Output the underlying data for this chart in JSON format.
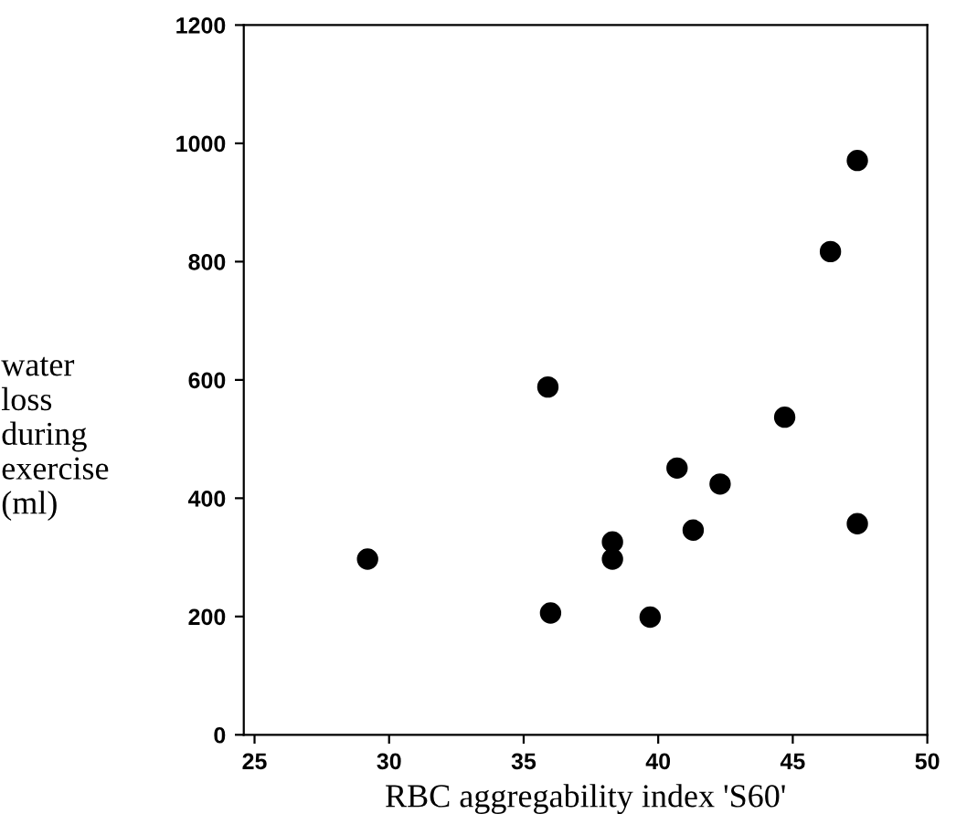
{
  "chart_data": {
    "type": "scatter",
    "xlabel": "RBC aggregability index 'S60'",
    "ylabel": "water\nloss\nduring\nexercise\n(ml)",
    "x": [
      29.2,
      35.9,
      36.0,
      38.3,
      38.3,
      39.7,
      40.7,
      41.3,
      42.3,
      44.7,
      46.4,
      47.4,
      47.4
    ],
    "values": [
      297,
      588,
      206,
      326,
      297,
      199,
      451,
      346,
      424,
      537,
      817,
      971,
      357
    ],
    "color": "#000000",
    "marker": "circle",
    "xlim": [
      24.6,
      50
    ],
    "xticks": [
      25,
      30,
      35,
      40,
      45,
      50
    ],
    "ylim": [
      0,
      1200
    ],
    "yticks": [
      0,
      200,
      400,
      600,
      800,
      1000,
      1200
    ]
  }
}
